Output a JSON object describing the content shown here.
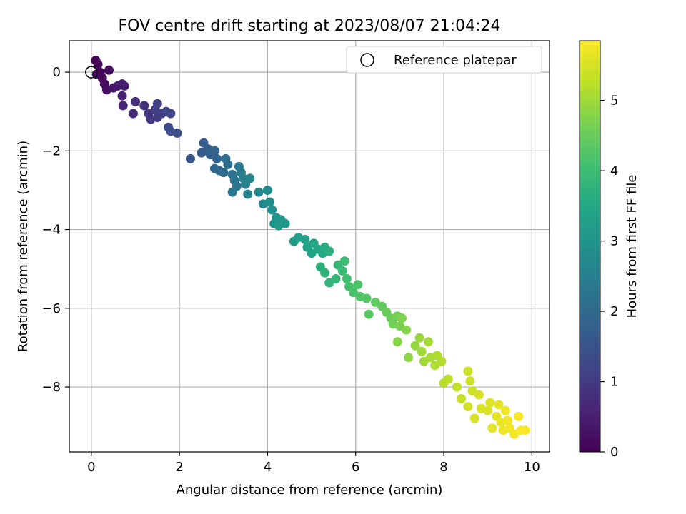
{
  "chart_data": {
    "type": "scatter",
    "title": "FOV centre drift starting at 2023/08/07 21:04:24",
    "xlabel": "Angular distance from reference (arcmin)",
    "ylabel": "Rotation from reference (arcmin)",
    "xlim": [
      -0.5,
      10.4
    ],
    "ylim": [
      -9.65,
      0.8
    ],
    "xticks": [
      0,
      2,
      4,
      6,
      8,
      10
    ],
    "xtick_labels": [
      "0",
      "2",
      "4",
      "6",
      "8",
      "10"
    ],
    "yticks": [
      0,
      -2,
      -4,
      -6,
      -8
    ],
    "ytick_labels": [
      "0",
      "−2",
      "−4",
      "−6",
      "−8"
    ],
    "grid": true,
    "legend": {
      "placement": "top-right",
      "entries": [
        {
          "label": "Reference platepar",
          "marker": "open-circle"
        }
      ]
    },
    "reference_point": {
      "x": 0,
      "y": 0
    },
    "colorbar": {
      "label": "Hours from first FF file",
      "colormap": "viridis",
      "range": [
        0,
        5.85
      ],
      "ticks": [
        0,
        1,
        2,
        3,
        4,
        5
      ],
      "tick_labels": [
        "0",
        "1",
        "2",
        "3",
        "4",
        "5"
      ]
    },
    "points": [
      [
        0.1,
        0.3,
        0.02
      ],
      [
        0.15,
        0.2,
        0.05
      ],
      [
        0.2,
        0.0,
        0.08
      ],
      [
        0.12,
        -0.05,
        0.1
      ],
      [
        0.25,
        -0.15,
        0.12
      ],
      [
        0.4,
        0.05,
        0.15
      ],
      [
        0.3,
        -0.3,
        0.2
      ],
      [
        0.35,
        -0.45,
        0.25
      ],
      [
        0.5,
        -0.4,
        0.3
      ],
      [
        0.6,
        -0.35,
        0.4
      ],
      [
        0.7,
        -0.3,
        0.45
      ],
      [
        0.75,
        -0.35,
        0.5
      ],
      [
        0.7,
        -0.6,
        0.55
      ],
      [
        0.72,
        -0.85,
        0.6
      ],
      [
        0.95,
        -1.05,
        0.7
      ],
      [
        1.0,
        -0.75,
        0.75
      ],
      [
        1.2,
        -0.85,
        0.85
      ],
      [
        1.3,
        -1.05,
        0.9
      ],
      [
        1.35,
        -1.2,
        0.95
      ],
      [
        1.5,
        -1.15,
        1.0
      ],
      [
        1.6,
        -1.05,
        1.05
      ],
      [
        1.45,
        -0.95,
        1.1
      ],
      [
        1.5,
        -0.8,
        1.12
      ],
      [
        1.7,
        -1.0,
        1.18
      ],
      [
        1.8,
        -1.05,
        1.22
      ],
      [
        1.75,
        -1.4,
        1.3
      ],
      [
        1.8,
        -1.5,
        1.35
      ],
      [
        1.95,
        -1.55,
        1.4
      ],
      [
        2.25,
        -2.2,
        1.55
      ],
      [
        2.5,
        -2.05,
        1.65
      ],
      [
        2.55,
        -1.8,
        1.7
      ],
      [
        2.65,
        -1.95,
        1.75
      ],
      [
        2.7,
        -2.1,
        1.8
      ],
      [
        2.8,
        -2.0,
        1.85
      ],
      [
        2.85,
        -2.2,
        1.9
      ],
      [
        2.8,
        -2.45,
        1.95
      ],
      [
        2.9,
        -2.5,
        2.0
      ],
      [
        3.0,
        -2.55,
        2.05
      ],
      [
        3.05,
        -2.2,
        2.1
      ],
      [
        3.1,
        -2.35,
        2.12
      ],
      [
        3.2,
        -2.6,
        2.18
      ],
      [
        3.25,
        -2.75,
        2.22
      ],
      [
        3.3,
        -2.9,
        2.28
      ],
      [
        3.2,
        -3.05,
        2.32
      ],
      [
        3.35,
        -2.4,
        2.38
      ],
      [
        3.4,
        -2.55,
        2.42
      ],
      [
        3.45,
        -2.7,
        2.48
      ],
      [
        3.5,
        -2.85,
        2.52
      ],
      [
        3.55,
        -3.1,
        2.58
      ],
      [
        3.6,
        -2.7,
        2.62
      ],
      [
        3.8,
        -3.05,
        2.7
      ],
      [
        3.9,
        -3.35,
        2.75
      ],
      [
        4.0,
        -3.0,
        2.8
      ],
      [
        4.05,
        -3.3,
        2.85
      ],
      [
        4.1,
        -3.5,
        2.9
      ],
      [
        4.2,
        -3.7,
        2.95
      ],
      [
        4.15,
        -3.85,
        3.0
      ],
      [
        4.3,
        -3.75,
        3.05
      ],
      [
        4.4,
        -3.85,
        3.1
      ],
      [
        4.25,
        -3.9,
        3.12
      ],
      [
        4.6,
        -4.3,
        3.2
      ],
      [
        4.7,
        -4.2,
        3.25
      ],
      [
        4.85,
        -4.25,
        3.3
      ],
      [
        4.9,
        -4.45,
        3.35
      ],
      [
        5.0,
        -4.6,
        3.4
      ],
      [
        5.05,
        -4.35,
        3.45
      ],
      [
        5.15,
        -4.5,
        3.5
      ],
      [
        5.25,
        -4.6,
        3.55
      ],
      [
        5.3,
        -4.45,
        3.6
      ],
      [
        5.4,
        -4.55,
        3.65
      ],
      [
        5.2,
        -4.95,
        3.7
      ],
      [
        5.3,
        -5.1,
        3.75
      ],
      [
        5.4,
        -5.35,
        3.8
      ],
      [
        5.55,
        -5.25,
        3.85
      ],
      [
        5.6,
        -4.9,
        3.9
      ],
      [
        5.7,
        -5.05,
        3.95
      ],
      [
        5.75,
        -4.8,
        4.0
      ],
      [
        5.8,
        -5.25,
        4.05
      ],
      [
        5.85,
        -5.45,
        4.1
      ],
      [
        5.95,
        -5.6,
        4.15
      ],
      [
        6.05,
        -5.4,
        4.2
      ],
      [
        6.1,
        -5.7,
        4.22
      ],
      [
        6.25,
        -5.75,
        4.28
      ],
      [
        6.3,
        -6.15,
        4.32
      ],
      [
        6.45,
        -5.85,
        4.38
      ],
      [
        6.6,
        -5.95,
        4.42
      ],
      [
        6.7,
        -6.1,
        4.48
      ],
      [
        6.8,
        -6.25,
        4.52
      ],
      [
        6.85,
        -6.4,
        4.58
      ],
      [
        6.95,
        -6.2,
        4.62
      ],
      [
        7.0,
        -6.45,
        4.68
      ],
      [
        7.05,
        -6.25,
        4.72
      ],
      [
        7.15,
        -6.55,
        4.78
      ],
      [
        6.95,
        -6.85,
        4.8
      ],
      [
        7.2,
        -7.25,
        4.85
      ],
      [
        7.35,
        -6.95,
        4.9
      ],
      [
        7.45,
        -6.75,
        4.95
      ],
      [
        7.5,
        -7.1,
        5.0
      ],
      [
        7.55,
        -7.35,
        5.02
      ],
      [
        7.65,
        -6.85,
        5.05
      ],
      [
        7.7,
        -7.25,
        5.1
      ],
      [
        7.8,
        -7.45,
        5.12
      ],
      [
        7.85,
        -7.2,
        5.15
      ],
      [
        7.95,
        -7.35,
        5.2
      ],
      [
        8.0,
        -7.9,
        5.22
      ],
      [
        8.1,
        -7.8,
        5.25
      ],
      [
        8.3,
        -8.0,
        5.3
      ],
      [
        8.4,
        -8.3,
        5.35
      ],
      [
        8.55,
        -7.6,
        5.38
      ],
      [
        8.6,
        -7.85,
        5.4
      ],
      [
        8.65,
        -8.1,
        5.42
      ],
      [
        8.55,
        -8.5,
        5.45
      ],
      [
        8.7,
        -8.8,
        5.48
      ],
      [
        8.8,
        -8.2,
        5.5
      ],
      [
        8.85,
        -8.55,
        5.52
      ],
      [
        9.0,
        -8.6,
        5.55
      ],
      [
        9.05,
        -8.4,
        5.58
      ],
      [
        9.1,
        -9.05,
        5.6
      ],
      [
        9.2,
        -8.75,
        5.62
      ],
      [
        9.25,
        -8.45,
        5.65
      ],
      [
        9.3,
        -8.9,
        5.67
      ],
      [
        9.35,
        -9.1,
        5.7
      ],
      [
        9.4,
        -8.6,
        5.72
      ],
      [
        9.45,
        -8.85,
        5.74
      ],
      [
        9.5,
        -9.05,
        5.76
      ],
      [
        9.6,
        -9.2,
        5.78
      ],
      [
        9.7,
        -8.75,
        5.8
      ],
      [
        9.75,
        -9.1,
        5.82
      ],
      [
        9.85,
        -9.1,
        5.84
      ]
    ]
  }
}
